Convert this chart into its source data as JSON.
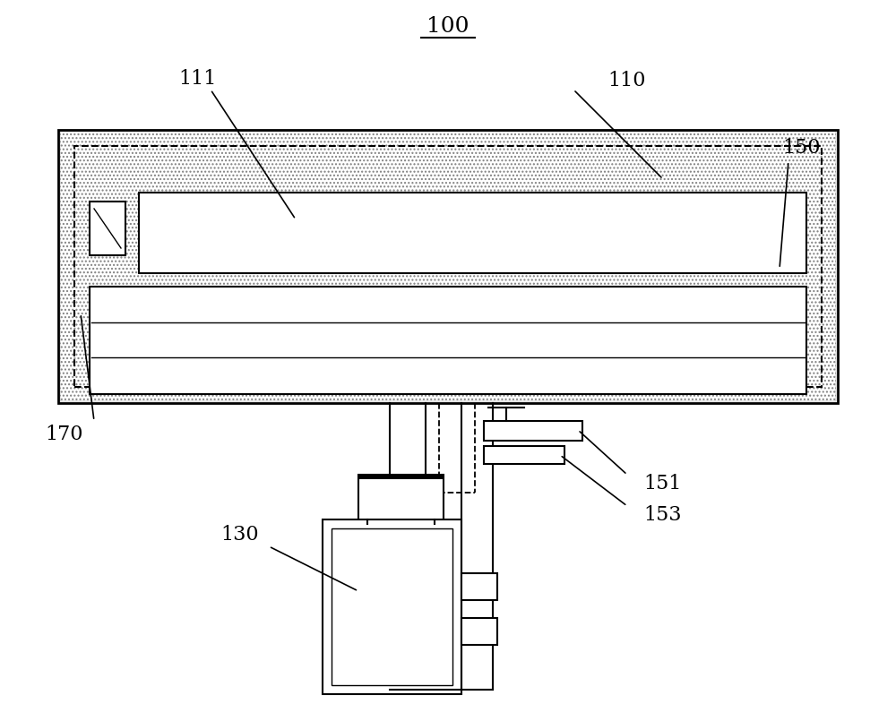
{
  "bg_color": "#ffffff",
  "line_color": "#000000",
  "label_100": "100",
  "label_110": "110",
  "label_111": "111",
  "label_130": "130",
  "label_150": "150",
  "label_151": "151",
  "label_153": "153",
  "label_170": "170",
  "font_size_labels": 16,
  "title_underline": true
}
